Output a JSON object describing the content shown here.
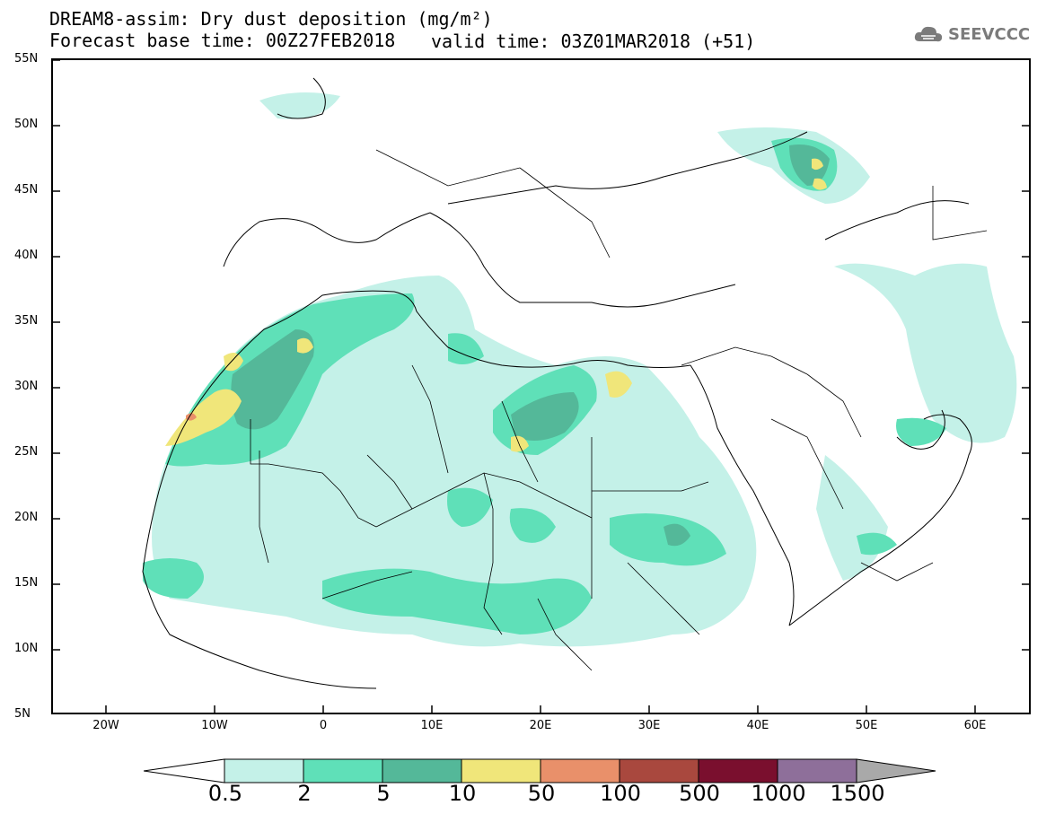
{
  "header": {
    "title_line": "DREAM8-assim: Dry dust deposition (mg/m²)",
    "base_time_line": "Forecast base time: 00Z27FEB2018",
    "valid_time_line": "valid time: 03Z01MAR2018 (+51)"
  },
  "logo": {
    "text": "SEEVCCC",
    "icon": "cloud-icon",
    "color": "#7b7b7b"
  },
  "map": {
    "lat_labels": [
      "55N",
      "50N",
      "45N",
      "40N",
      "35N",
      "30N",
      "25N",
      "20N",
      "15N",
      "10N",
      "5N"
    ],
    "lon_labels": [
      "20W",
      "10W",
      "0",
      "10E",
      "20E",
      "30E",
      "40E",
      "50E",
      "60E"
    ]
  },
  "colorbar": {
    "labels": [
      "0.5",
      "2",
      "5",
      "10",
      "50",
      "100",
      "500",
      "1000",
      "1500"
    ],
    "colors": [
      "#c4f1e8",
      "#5fe0b8",
      "#54b899",
      "#f0e67a",
      "#e9906a",
      "#a9483e",
      "#7a0f2e",
      "#8e6f9a",
      "#a9a9a9"
    ]
  }
}
